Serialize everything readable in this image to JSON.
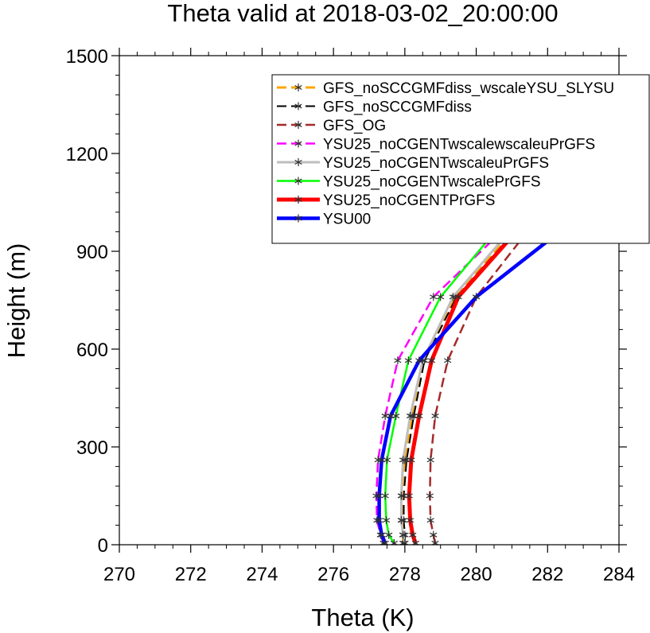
{
  "chart_data": {
    "type": "line",
    "title": "Theta valid at 2018-03-02_20:00:00",
    "xlabel": "Theta (K)",
    "ylabel": "Height (m)",
    "xlim": [
      270,
      284
    ],
    "ylim": [
      0,
      1500
    ],
    "x_ticks": [
      "270",
      "272",
      "274",
      "276",
      "278",
      "280",
      "282",
      "284"
    ],
    "y_ticks": [
      "0",
      "300",
      "600",
      "900",
      "1200",
      "1500"
    ],
    "legend_position": "top-right",
    "marker": "asterisk",
    "grid": false,
    "series": [
      {
        "name": "GFS_noSCCGMFdiss_wscaleYSU_SLYSU",
        "color": "#ffa500",
        "dash": "dashed",
        "width": 3,
        "points": [
          [
            277.95,
            5
          ],
          [
            277.95,
            30
          ],
          [
            277.92,
            75
          ],
          [
            277.92,
            150
          ],
          [
            278.0,
            260
          ],
          [
            278.2,
            395
          ],
          [
            278.5,
            565
          ],
          [
            279.4,
            760
          ],
          [
            281.1,
            970
          ],
          [
            284.0,
            1215
          ]
        ]
      },
      {
        "name": "GFS_noSCCGMFdiss",
        "color": "#000000",
        "dash": "dashed",
        "width": 2,
        "points": [
          [
            278.0,
            5
          ],
          [
            278.0,
            30
          ],
          [
            277.97,
            75
          ],
          [
            277.97,
            150
          ],
          [
            278.05,
            260
          ],
          [
            278.25,
            395
          ],
          [
            278.55,
            565
          ],
          [
            279.45,
            760
          ],
          [
            281.15,
            970
          ],
          [
            284.0,
            1220
          ]
        ]
      },
      {
        "name": "GFS_OG",
        "color": "#a52a2a",
        "dash": "dashed",
        "width": 2.5,
        "points": [
          [
            278.85,
            5
          ],
          [
            278.8,
            30
          ],
          [
            278.72,
            75
          ],
          [
            278.7,
            150
          ],
          [
            278.72,
            260
          ],
          [
            278.85,
            395
          ],
          [
            279.2,
            565
          ],
          [
            280.0,
            760
          ],
          [
            281.5,
            970
          ],
          [
            284.0,
            1200
          ]
        ]
      },
      {
        "name": "YSU25_noCGENTwscalewscaleuPrGFS",
        "color": "#ff00ff",
        "dash": "dashed",
        "width": 2.5,
        "points": [
          [
            277.4,
            5
          ],
          [
            277.32,
            30
          ],
          [
            277.22,
            75
          ],
          [
            277.2,
            150
          ],
          [
            277.25,
            260
          ],
          [
            277.45,
            395
          ],
          [
            277.8,
            565
          ],
          [
            278.8,
            760
          ],
          [
            280.8,
            970
          ],
          [
            284.0,
            1260
          ]
        ]
      },
      {
        "name": "YSU25_noCGENTwscaleuPrGFS",
        "color": "#bebebe",
        "dash": "solid",
        "width": 3,
        "points": [
          [
            278.0,
            5
          ],
          [
            277.95,
            30
          ],
          [
            277.9,
            75
          ],
          [
            277.9,
            150
          ],
          [
            277.95,
            260
          ],
          [
            278.15,
            395
          ],
          [
            278.5,
            565
          ],
          [
            279.35,
            760
          ],
          [
            281.0,
            970
          ],
          [
            284.0,
            1220
          ]
        ]
      },
      {
        "name": "YSU25_noCGENTwscalePrGFS",
        "color": "#00ff00",
        "dash": "solid",
        "width": 2.5,
        "points": [
          [
            277.7,
            5
          ],
          [
            277.55,
            30
          ],
          [
            277.48,
            75
          ],
          [
            277.45,
            150
          ],
          [
            277.5,
            260
          ],
          [
            277.75,
            395
          ],
          [
            278.1,
            565
          ],
          [
            279.0,
            760
          ],
          [
            280.6,
            970
          ],
          [
            284.0,
            1290
          ]
        ]
      },
      {
        "name": "YSU25_noCGENTPrGFS",
        "color": "#ff0000",
        "dash": "solid",
        "width": 5,
        "points": [
          [
            278.3,
            5
          ],
          [
            278.22,
            30
          ],
          [
            278.15,
            75
          ],
          [
            278.12,
            150
          ],
          [
            278.18,
            260
          ],
          [
            278.4,
            395
          ],
          [
            278.75,
            565
          ],
          [
            279.5,
            760
          ],
          [
            281.2,
            970
          ],
          [
            284.0,
            1220
          ]
        ]
      },
      {
        "name": "YSU00",
        "color": "#0000ff",
        "dash": "solid",
        "width": 4.5,
        "points": [
          [
            277.45,
            5
          ],
          [
            277.35,
            30
          ],
          [
            277.28,
            75
          ],
          [
            277.28,
            150
          ],
          [
            277.35,
            260
          ],
          [
            277.6,
            395
          ],
          [
            278.4,
            565
          ],
          [
            280.0,
            760
          ],
          [
            282.45,
            970
          ],
          [
            284.0,
            1105
          ]
        ]
      }
    ]
  }
}
